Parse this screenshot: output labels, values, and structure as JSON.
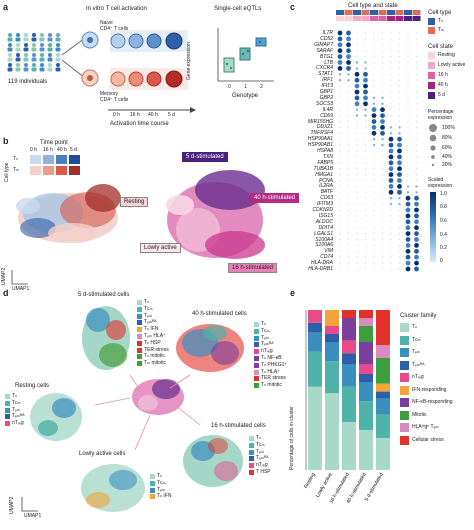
{
  "panel_a": {
    "letter": "a",
    "individuals": "119 individuals",
    "activation_title": "In vitro T cell activation",
    "naive_label": [
      "Naive",
      "CD4⁺ T cells"
    ],
    "memory_label": [
      "Memory",
      "CD4⁺ T cells"
    ],
    "timecourse_ticks": [
      "0 h",
      "16 h",
      "40 h",
      "5 d"
    ],
    "timecourse_label": "Activation time course",
    "eqtl_title": "Single-cell eQTLs",
    "ylabel": "Gene expression",
    "xlabel": "Genotype",
    "genotypes": [
      "0",
      "1",
      "2"
    ]
  },
  "panel_b": {
    "letter": "b",
    "timepoint_title": "Time point",
    "timepoints": [
      "0 h",
      "16 h",
      "40 h",
      "5 d"
    ],
    "celltype_label": "Cell type",
    "tn": "Tₙ",
    "tm": "Tₘ",
    "umap1": "UMAP1",
    "umap2": "UMAP2",
    "states": [
      "5 d-stimulated",
      "40 h-stimulated",
      "Resting",
      "Lowly active",
      "16 h-stimulated"
    ]
  },
  "panel_c": {
    "letter": "c",
    "header": "Cell type and state",
    "legend_celltype_title": "Cell type",
    "legend_celltype": [
      "Tₙ",
      "Tₘ"
    ],
    "legend_state_title": "Cell state",
    "legend_states": [
      "Resting",
      "Lowly active",
      "16 h",
      "40 h",
      "5 d"
    ],
    "legend_pct_title": [
      "Percentage",
      "expression"
    ],
    "legend_pct": [
      "100%",
      "80%",
      "60%",
      "40%",
      "20%"
    ],
    "legend_scaled_title": [
      "Scaled",
      "expression"
    ],
    "legend_scaled_ticks": [
      "1.0",
      "0.8",
      "0.6",
      "0.4",
      "0.2",
      "0"
    ],
    "genes": [
      "IL7R",
      "CD52",
      "GIMAP7",
      "SARAF",
      "BTG1",
      "LTB",
      "CXCR4",
      "STAT1",
      "IRF1",
      "IFIT3",
      "GBP1",
      "GBP2",
      "SOCS3",
      "IL4R",
      "CD69",
      "MIR155HG",
      "DDX21",
      "TNFRSF4",
      "HSP90AA1",
      "HSP90AB1",
      "HSPA8",
      "TXN",
      "FABP5",
      "TUBA1B",
      "HMGA1",
      "PCNA",
      "IL2RA",
      "BATF",
      "CD63",
      "IFITM3",
      "CDKN2D",
      "ISG15",
      "ALDOC",
      "DDIT4",
      "LGALS1",
      "S100A4",
      "S100A6",
      "VIM",
      "CD74",
      "HLA-DRA",
      "HLA-DRB1"
    ]
  },
  "panel_d": {
    "letter": "d",
    "umap1": "UMAP1",
    "umap2": "UMAP2",
    "c5d_title": "5 d-stimulated cells",
    "c5d_labels": [
      "Tₙ",
      "Tᴄₘ",
      "Tₑₘ",
      "Tₑₘᴿᴬ",
      "Tₙ IFN",
      "Tₑₘ HLA⁺",
      "Tₙ HSP",
      "TER stress",
      "Tₙ mitotic",
      "Tₘ mitotic"
    ],
    "c40_title": "40 h-stimulated cells",
    "c40_labels": [
      "Tₙ",
      "Tᴄₘ",
      "Tₑₘ",
      "Tₑₘᴿᴬ",
      "nTᵣₑg",
      "Tₙ NF-κB",
      "Tₙ PHKG1⁺",
      "Tₙ HLA⁺",
      "TER stress",
      "Tₙ mitotic"
    ],
    "resting_title": "Resting cells",
    "resting_labels": [
      "Tₙ",
      "Tᴄₘ",
      "Tₑₘ",
      "Tₑₘᴿᴬ",
      "nTᵣₑg"
    ],
    "c16_title": "16 h-stimulated cells",
    "c16_labels": [
      "Tₙ",
      "Tᴄₘ",
      "Tₑₘ",
      "Tₑₘᴿᴬ",
      "nTᵣₑg",
      "T HSP"
    ],
    "lowly_title": "Lowly active cells",
    "lowly_labels": [
      "Tₙ",
      "Tᴄₘ",
      "Tₑₘ",
      "Tₙ IFN"
    ]
  },
  "panel_e": {
    "letter": "e",
    "ylabel": "Percentage of cells in cluster",
    "legend_title": "Cluster family",
    "legend": [
      "Tₙ",
      "Tᴄₘ",
      "Tₑₘ",
      "Tₑₘᴿᴬ",
      "nTᵣₑg",
      "IFN-responding",
      "NF-κB-responding",
      "Mitotic",
      "HLAʰⁱgʰ Tₑₘ",
      "Cellular stress"
    ],
    "colors": [
      "#a8d8c8",
      "#4fb3a9",
      "#3a8fbf",
      "#2e5fa8",
      "#e94b8a",
      "#f2a33a",
      "#7b3fa0",
      "#3c9e3c",
      "#d98bc0",
      "#e2312b"
    ]
  },
  "chart_data": {
    "type": "bar",
    "categories": [
      "Resting",
      "Lowly active",
      "16 h-stimulated",
      "40 h-stimulated",
      "5 d-stimulated"
    ],
    "ylim": [
      0,
      100
    ],
    "series": [
      {
        "name": "Tₙ",
        "values": [
          52,
          48,
          30,
          25,
          20
        ]
      },
      {
        "name": "Tᴄₘ",
        "values": [
          22,
          20,
          22,
          18,
          15
        ]
      },
      {
        "name": "Tₑₘ",
        "values": [
          12,
          12,
          14,
          12,
          10
        ]
      },
      {
        "name": "Tₑₘᴿᴬ",
        "values": [
          6,
          5,
          7,
          5,
          4
        ]
      },
      {
        "name": "nTᵣₑg",
        "values": [
          8,
          5,
          8,
          6,
          0
        ]
      },
      {
        "name": "IFN-responding",
        "values": [
          0,
          10,
          0,
          0,
          5
        ]
      },
      {
        "name": "NF-κB-responding",
        "values": [
          0,
          0,
          14,
          14,
          0
        ]
      },
      {
        "name": "Mitotic",
        "values": [
          0,
          0,
          0,
          10,
          16
        ]
      },
      {
        "name": "HLAʰⁱgʰ Tₑₘ",
        "values": [
          0,
          0,
          0,
          5,
          8
        ]
      },
      {
        "name": "Cellular stress",
        "values": [
          0,
          0,
          5,
          5,
          22
        ]
      }
    ]
  }
}
